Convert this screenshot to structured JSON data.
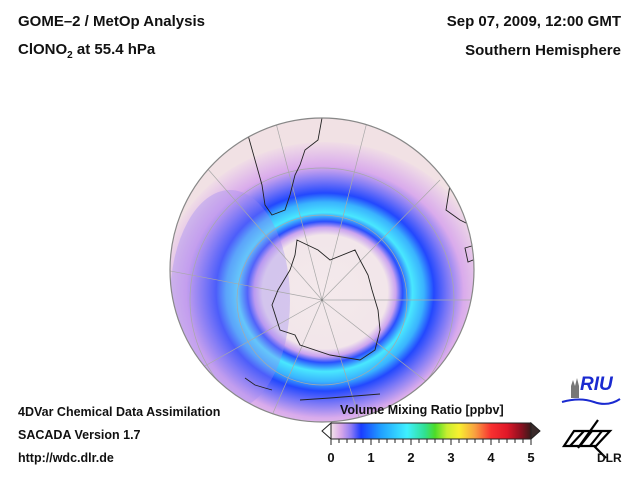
{
  "header": {
    "title_line1": "GOME–2 / MetOp Analysis",
    "species": "ClONO",
    "species_subscript": "2",
    "level": " at 55.4 hPa",
    "datetime": "Sep 07, 2009, 12:00 GMT",
    "region": "Southern Hemisphere"
  },
  "footer": {
    "line1": "4DVar Chemical Data Assimilation",
    "line2": "SACADA Version 1.7",
    "line3": "http://wdc.dlr.de"
  },
  "colorbar": {
    "title": "Volume Mixing Ratio [ppbv]",
    "min": 0,
    "max": 5,
    "tick_labels": [
      "0",
      "1",
      "2",
      "3",
      "4",
      "5"
    ],
    "extend": "both",
    "stops": [
      "#f2e4e8",
      "#d9a8e8",
      "#8f7cf4",
      "#1a3cff",
      "#20a0ff",
      "#3ff0ff",
      "#30e090",
      "#4cdc28",
      "#c8ee30",
      "#f8f030",
      "#f8a040",
      "#f83030",
      "#e01828",
      "#8c1020",
      "#3a1a1a"
    ]
  },
  "map": {
    "projection": "orthographic, south pole view",
    "ring_peak_ppbv": 1.5,
    "core_ppbv": 0.1,
    "background_ppbv": 0.2
  },
  "logos": {
    "riu": "RIU",
    "dlr": "DLR"
  }
}
